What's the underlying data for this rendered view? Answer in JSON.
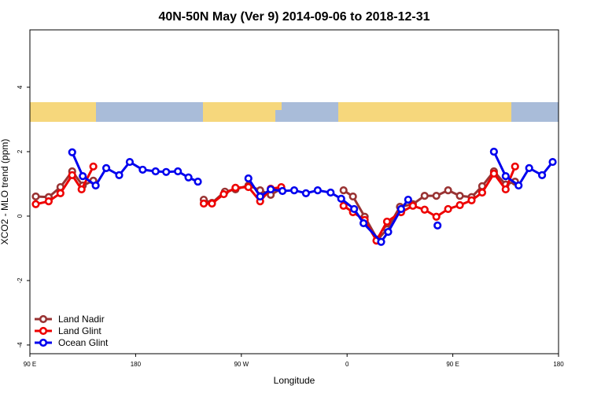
{
  "chart_data": {
    "type": "line",
    "title": "40N-50N May (Ver 9)   2014-09-06 to 2018-12-31",
    "x_label": "Longitude",
    "y_label": "XCO2 - MLO trend (ppm)",
    "xlim": [
      90,
      540
    ],
    "ylim": [
      -4.27,
      5.78
    ],
    "xticks": [
      {
        "value": 90,
        "label": "90 E"
      },
      {
        "value": 180,
        "label": "180"
      },
      {
        "value": 270,
        "label": "90 W"
      },
      {
        "value": 360,
        "label": "0"
      },
      {
        "value": 450,
        "label": "90 E"
      },
      {
        "value": 540,
        "label": "180"
      }
    ],
    "yticks": [
      -4,
      -2,
      0,
      2,
      4
    ],
    "legend": "bottomleft",
    "series": [
      {
        "name": "Land Nadir",
        "color": "#993333",
        "x": [
          95,
          106,
          116,
          126,
          135,
          144,
          null,
          238,
          245,
          256,
          265,
          276,
          286,
          295,
          304,
          null,
          357,
          365,
          375,
          386,
          394,
          405,
          416,
          426,
          436,
          446,
          456,
          466,
          475,
          485,
          495,
          503
        ],
        "values": [
          0.61,
          0.59,
          0.9,
          1.39,
          0.95,
          1.1,
          null,
          0.51,
          0.41,
          0.76,
          0.83,
          0.95,
          0.8,
          0.66,
          0.85,
          null,
          0.8,
          0.61,
          -0.02,
          -0.73,
          -0.41,
          0.29,
          0.37,
          0.63,
          0.63,
          0.8,
          0.63,
          0.59,
          0.93,
          1.39,
          0.98,
          1.07
        ]
      },
      {
        "name": "Land Glint",
        "color": "#ee0000",
        "x": [
          95,
          106,
          116,
          126,
          134,
          144,
          null,
          238,
          245,
          255,
          265,
          276,
          286,
          295,
          304,
          null,
          357,
          365,
          375,
          385,
          394,
          406,
          416,
          426,
          436,
          446,
          456,
          466,
          475,
          485,
          495,
          503
        ],
        "values": [
          0.37,
          0.46,
          0.71,
          1.27,
          0.83,
          1.54,
          null,
          0.39,
          0.39,
          0.68,
          0.88,
          0.9,
          0.46,
          0.85,
          0.9,
          null,
          0.32,
          0.12,
          -0.12,
          -0.76,
          -0.17,
          0.12,
          0.32,
          0.2,
          -0.02,
          0.22,
          0.34,
          0.49,
          0.73,
          1.32,
          0.83,
          1.54
        ]
      },
      {
        "name": "Ocean Glint",
        "color": "#0000ee",
        "x": [
          126,
          135,
          146,
          155,
          166,
          175,
          186,
          197,
          206,
          216,
          225,
          233,
          null,
          276,
          286,
          295,
          305,
          315,
          325,
          335,
          346,
          355,
          366,
          374,
          389,
          395,
          406,
          412,
          null,
          437,
          null,
          485,
          495,
          506,
          515,
          526,
          535
        ],
        "values": [
          1.98,
          1.24,
          0.95,
          1.49,
          1.27,
          1.68,
          1.44,
          1.39,
          1.37,
          1.39,
          1.2,
          1.07,
          null,
          1.17,
          0.61,
          0.83,
          0.78,
          0.8,
          0.71,
          0.8,
          0.73,
          0.54,
          0.22,
          -0.22,
          -0.8,
          -0.49,
          0.22,
          0.51,
          null,
          -0.29,
          null,
          2.0,
          1.24,
          0.95,
          1.49,
          1.27,
          1.68
        ]
      }
    ]
  }
}
